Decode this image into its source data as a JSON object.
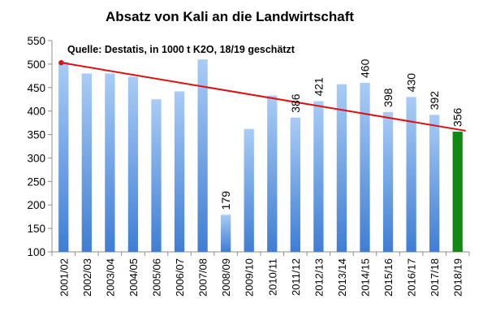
{
  "chart_data": {
    "type": "bar",
    "title": "Absatz von Kali an die Landwirtschaft",
    "annotation": "Quelle: Destatis, in 1000 t K2O, 18/19 geschätzt",
    "categories": [
      "2001/02",
      "2002/03",
      "2003/04",
      "2004/05",
      "2005/06",
      "2006/07",
      "2007/08",
      "2008/09",
      "2009/10",
      "2010/11",
      "2011/12",
      "2012/13",
      "2013/14",
      "2014/15",
      "2015/16",
      "2016/17",
      "2017/18",
      "2018/19"
    ],
    "values": [
      505,
      480,
      480,
      473,
      425,
      442,
      510,
      179,
      362,
      433,
      386,
      421,
      457,
      460,
      398,
      430,
      392,
      356
    ],
    "data_labels": [
      {
        "index": 7,
        "text": "179"
      },
      {
        "index": 10,
        "text": "386"
      },
      {
        "index": 11,
        "text": "421"
      },
      {
        "index": 13,
        "text": "460"
      },
      {
        "index": 14,
        "text": "398"
      },
      {
        "index": 15,
        "text": "430"
      },
      {
        "index": 16,
        "text": "392"
      },
      {
        "index": 17,
        "text": "356"
      }
    ],
    "highlight_index": 17,
    "trendline": {
      "start": 503,
      "end": 358
    },
    "ylim": [
      100,
      550
    ],
    "yticks": [
      100,
      150,
      200,
      250,
      300,
      350,
      400,
      450,
      500,
      550
    ],
    "xlabel": "",
    "ylabel": "",
    "grid": false,
    "colors": {
      "bar_top": "#a9ccf6",
      "bar_bottom": "#3f7ed3",
      "highlight": "#128a0f",
      "trendline": "#e01010",
      "axis": "#8c8c8c"
    }
  }
}
